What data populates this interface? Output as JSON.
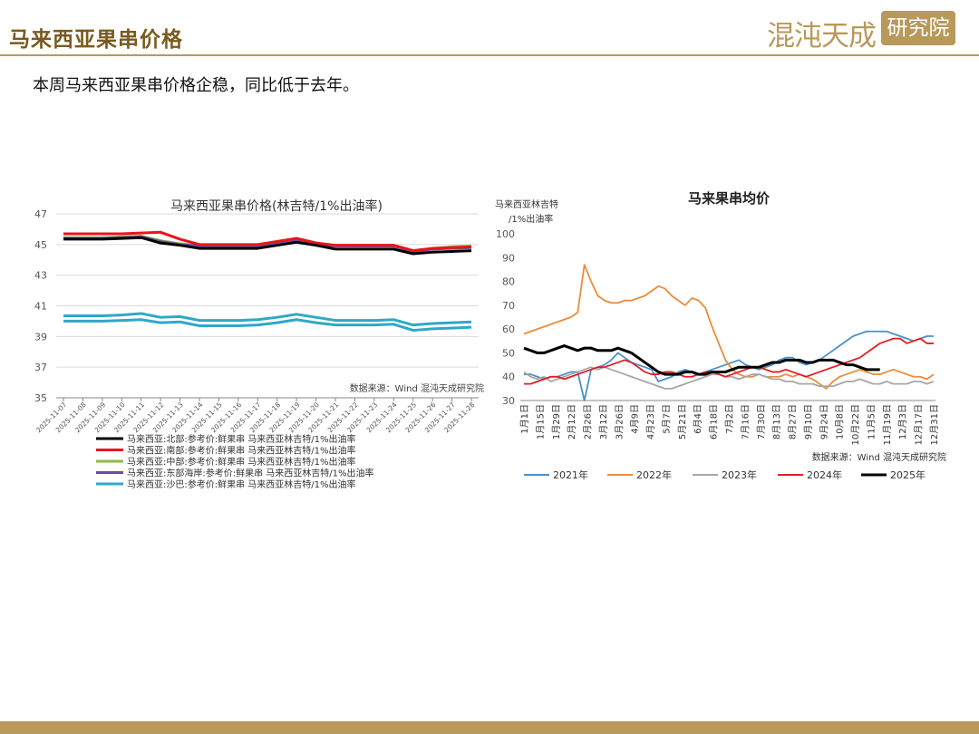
{
  "header": {
    "title": "马来西亚果串价格"
  },
  "logo": {
    "text": "混沌天成",
    "box": "研究院"
  },
  "subtitle": "本周马来西亚果串价格企稳，同比低于去年。",
  "chart_data": [
    {
      "type": "line",
      "title": "马来西亚果串价格(林吉特/1%出油率)",
      "source": "数据来源：Wind 混沌天成研究院",
      "x": [
        "2025-11-07",
        "2025-11-08",
        "2025-11-09",
        "2025-11-10",
        "2025-11-11",
        "2025-11-12",
        "2025-11-13",
        "2025-11-14",
        "2025-11-15",
        "2025-11-16",
        "2025-11-17",
        "2025-11-18",
        "2025-11-19",
        "2025-11-20",
        "2025-11-21",
        "2025-11-22",
        "2025-11-23",
        "2025-11-24",
        "2025-11-25",
        "2025-11-26",
        "2025-11-27",
        "2025-11-28"
      ],
      "ylim": [
        35,
        47
      ],
      "yticks": [
        35,
        37,
        39,
        41,
        43,
        45,
        47
      ],
      "grid": true,
      "legend_position": "bottom",
      "series": [
        {
          "name": "马来西亚:北部:参考价:鲜果串 马来西亚林吉特/1%出油率",
          "color": "#000000",
          "values": [
            45.35,
            45.35,
            45.35,
            45.4,
            45.45,
            45.1,
            44.95,
            44.75,
            44.75,
            44.75,
            44.75,
            44.95,
            45.15,
            44.95,
            44.7,
            44.7,
            44.7,
            44.7,
            44.4,
            44.5,
            44.55,
            44.6
          ]
        },
        {
          "name": "马来西亚:南部:参考价:鲜果串 马来西亚林吉特/1%出油率",
          "color": "#e8141c",
          "values": [
            45.7,
            45.7,
            45.7,
            45.7,
            45.75,
            45.8,
            45.35,
            45.0,
            45.0,
            45.0,
            45.0,
            45.2,
            45.4,
            45.1,
            44.95,
            44.95,
            44.95,
            44.95,
            44.6,
            44.75,
            44.8,
            44.85
          ]
        },
        {
          "name": "马来西亚:中部:参考价:鲜果串 马来西亚林吉特/1%出油率",
          "color": "#92b84a",
          "values": [
            45.45,
            45.45,
            45.45,
            45.5,
            45.55,
            45.25,
            45.05,
            44.95,
            44.95,
            44.95,
            44.95,
            45.2,
            45.4,
            45.1,
            44.95,
            44.95,
            44.95,
            44.95,
            44.6,
            44.75,
            44.85,
            44.9
          ]
        },
        {
          "name": "马来西亚:东部海岸:参考价:鲜果串 马来西亚林吉特/1%出油率",
          "color": "#6a4ea3",
          "values": [
            45.4,
            45.4,
            45.4,
            45.45,
            45.5,
            45.2,
            45.0,
            44.9,
            44.9,
            44.9,
            44.9,
            45.1,
            45.3,
            45.05,
            44.9,
            44.9,
            44.9,
            44.9,
            44.55,
            44.7,
            44.75,
            44.8
          ]
        },
        {
          "name": "马来西亚:沙巴:参考价:鲜果串 马来西亚林吉特/1%出油率",
          "color": "#2ea8c8",
          "values": [
            40.0,
            40.0,
            40.0,
            40.05,
            40.1,
            39.9,
            39.95,
            39.7,
            39.7,
            39.7,
            39.75,
            39.9,
            40.1,
            39.9,
            39.75,
            39.75,
            39.75,
            39.8,
            39.4,
            39.5,
            39.55,
            39.6
          ]
        },
        {
          "name": "",
          "color": "#2ea8c8",
          "legend": false,
          "values": [
            40.35,
            40.35,
            40.35,
            40.4,
            40.5,
            40.25,
            40.3,
            40.05,
            40.05,
            40.05,
            40.1,
            40.25,
            40.45,
            40.25,
            40.05,
            40.05,
            40.05,
            40.1,
            39.75,
            39.85,
            39.9,
            39.95
          ]
        }
      ]
    },
    {
      "type": "line",
      "title": "马来果串均价",
      "ylabel": [
        "马来西亚林吉特",
        "/1%出油率"
      ],
      "source": "数据来源：Wind 混沌天成研究院",
      "ylim": [
        30,
        100
      ],
      "yticks": [
        30,
        40,
        50,
        60,
        70,
        80,
        90,
        100
      ],
      "grid": false,
      "legend_position": "bottom",
      "x_ticks": [
        "1月1日",
        "1月15日",
        "1月29日",
        "2月12日",
        "2月26日",
        "3月12日",
        "3月26日",
        "4月9日",
        "4月23日",
        "5月7日",
        "5月21日",
        "6月4日",
        "6月18日",
        "7月2日",
        "7月16日",
        "7月30日",
        "8月13日",
        "8月27日",
        "9月10日",
        "9月24日",
        "10月8日",
        "10月22日",
        "11月5日",
        "11月19日",
        "12月3日",
        "12月17日",
        "12月31日"
      ],
      "series": [
        {
          "name": "2021年",
          "color": "#4a90c8",
          "values": [
            41,
            41,
            40,
            39,
            40,
            40,
            41,
            42,
            42,
            30,
            43,
            44,
            45,
            47,
            50,
            48,
            46,
            45,
            44,
            43,
            38,
            39,
            40,
            42,
            43,
            42,
            41,
            42,
            43,
            44,
            45,
            46,
            47,
            45,
            44,
            43,
            44,
            45,
            47,
            48,
            48,
            46,
            45,
            46,
            47,
            49,
            51,
            53,
            55,
            57,
            58,
            59,
            59,
            59,
            59,
            58,
            57,
            56,
            55,
            56,
            57,
            57
          ]
        },
        {
          "name": "2022年",
          "color": "#ec8c3a",
          "values": [
            58,
            59,
            60,
            61,
            62,
            63,
            64,
            65,
            67,
            87,
            80,
            74,
            72,
            71,
            71,
            72,
            72,
            73,
            74,
            76,
            78,
            77,
            74,
            72,
            70,
            73,
            72,
            69,
            61,
            54,
            47,
            43,
            41,
            40,
            40,
            41,
            40,
            40,
            40,
            41,
            40,
            41,
            40,
            39,
            37,
            35,
            38,
            40,
            41,
            42,
            43,
            42,
            41,
            41,
            42,
            43,
            42,
            41,
            40,
            40,
            39,
            41
          ]
        },
        {
          "name": "2023年",
          "color": "#a7a7a7",
          "values": [
            42,
            40,
            39,
            40,
            38,
            39,
            40,
            41,
            42,
            43,
            44,
            43,
            44,
            43,
            42,
            41,
            40,
            39,
            38,
            37,
            36,
            35,
            35,
            36,
            37,
            38,
            39,
            40,
            41,
            41,
            40,
            40,
            39,
            40,
            41,
            41,
            40,
            39,
            39,
            38,
            38,
            37,
            37,
            37,
            36,
            36,
            36,
            37,
            38,
            38,
            39,
            38,
            37,
            37,
            38,
            37,
            37,
            37,
            38,
            38,
            37,
            38
          ]
        },
        {
          "name": "2024年",
          "color": "#e21c24",
          "values": [
            37,
            37,
            38,
            39,
            40,
            40,
            39,
            40,
            41,
            42,
            43,
            44,
            44,
            45,
            46,
            47,
            46,
            44,
            42,
            41,
            41,
            42,
            42,
            41,
            40,
            40,
            41,
            42,
            42,
            41,
            40,
            41,
            42,
            43,
            44,
            44,
            43,
            42,
            42,
            43,
            42,
            41,
            40,
            41,
            42,
            43,
            44,
            45,
            46,
            47,
            48,
            50,
            52,
            54,
            55,
            56,
            56,
            54,
            55,
            56,
            54,
            54
          ]
        },
        {
          "name": "2025年",
          "color": "#000000",
          "values": [
            52,
            51,
            50,
            50,
            51,
            52,
            53,
            52,
            51,
            52,
            52,
            51,
            51,
            51,
            52,
            51,
            50,
            48,
            46,
            44,
            42,
            41,
            41,
            41,
            42,
            42,
            41,
            41,
            42,
            42,
            42,
            43,
            44,
            44,
            44,
            44,
            45,
            46,
            46,
            47,
            47,
            47,
            46,
            46,
            47,
            47,
            47,
            46,
            45,
            45,
            44,
            43,
            43,
            43
          ]
        }
      ]
    }
  ]
}
